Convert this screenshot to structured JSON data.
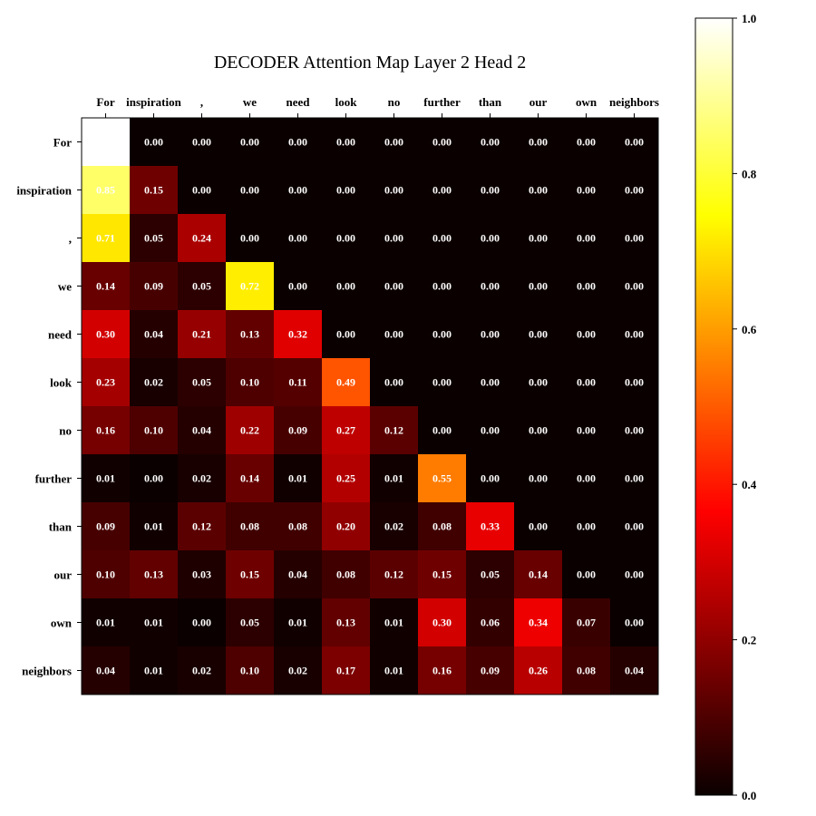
{
  "chart_data": {
    "type": "heatmap",
    "title": "DECODER Attention Map Layer 2 Head 2",
    "x_labels": [
      "For",
      "inspiration",
      ",",
      "we",
      "need",
      "look",
      "no",
      "further",
      "than",
      "our",
      "own",
      "neighbors"
    ],
    "y_labels": [
      "For",
      "inspiration",
      ",",
      "we",
      "need",
      "look",
      "no",
      "further",
      "than",
      "our",
      "own",
      "neighbors"
    ],
    "values": [
      [
        1.0,
        0.0,
        0.0,
        0.0,
        0.0,
        0.0,
        0.0,
        0.0,
        0.0,
        0.0,
        0.0,
        0.0
      ],
      [
        0.85,
        0.15,
        0.0,
        0.0,
        0.0,
        0.0,
        0.0,
        0.0,
        0.0,
        0.0,
        0.0,
        0.0
      ],
      [
        0.71,
        0.05,
        0.24,
        0.0,
        0.0,
        0.0,
        0.0,
        0.0,
        0.0,
        0.0,
        0.0,
        0.0
      ],
      [
        0.14,
        0.09,
        0.05,
        0.72,
        0.0,
        0.0,
        0.0,
        0.0,
        0.0,
        0.0,
        0.0,
        0.0
      ],
      [
        0.3,
        0.04,
        0.21,
        0.13,
        0.32,
        0.0,
        0.0,
        0.0,
        0.0,
        0.0,
        0.0,
        0.0
      ],
      [
        0.23,
        0.02,
        0.05,
        0.1,
        0.11,
        0.49,
        0.0,
        0.0,
        0.0,
        0.0,
        0.0,
        0.0
      ],
      [
        0.16,
        0.1,
        0.04,
        0.22,
        0.09,
        0.27,
        0.12,
        0.0,
        0.0,
        0.0,
        0.0,
        0.0
      ],
      [
        0.01,
        0.0,
        0.02,
        0.14,
        0.01,
        0.25,
        0.01,
        0.55,
        0.0,
        0.0,
        0.0,
        0.0
      ],
      [
        0.09,
        0.01,
        0.12,
        0.08,
        0.08,
        0.2,
        0.02,
        0.08,
        0.33,
        0.0,
        0.0,
        0.0
      ],
      [
        0.1,
        0.13,
        0.03,
        0.15,
        0.04,
        0.08,
        0.12,
        0.15,
        0.05,
        0.14,
        0.0,
        0.0
      ],
      [
        0.01,
        0.01,
        0.0,
        0.05,
        0.01,
        0.13,
        0.01,
        0.3,
        0.06,
        0.34,
        0.07,
        0.0
      ],
      [
        0.04,
        0.01,
        0.02,
        0.1,
        0.02,
        0.17,
        0.01,
        0.16,
        0.09,
        0.26,
        0.08,
        0.04
      ]
    ],
    "hidden_labels": [
      [
        0,
        0
      ]
    ],
    "colormap": "hot",
    "vmin": 0,
    "vmax": 1,
    "x_tick_position": "top",
    "colorbar": {
      "ticks": [
        0.0,
        0.2,
        0.4,
        0.6,
        0.8,
        1.0
      ],
      "tick_labels": [
        "0.0",
        "0.2",
        "0.4",
        "0.6",
        "0.8",
        "1.0"
      ],
      "position": "right"
    }
  }
}
